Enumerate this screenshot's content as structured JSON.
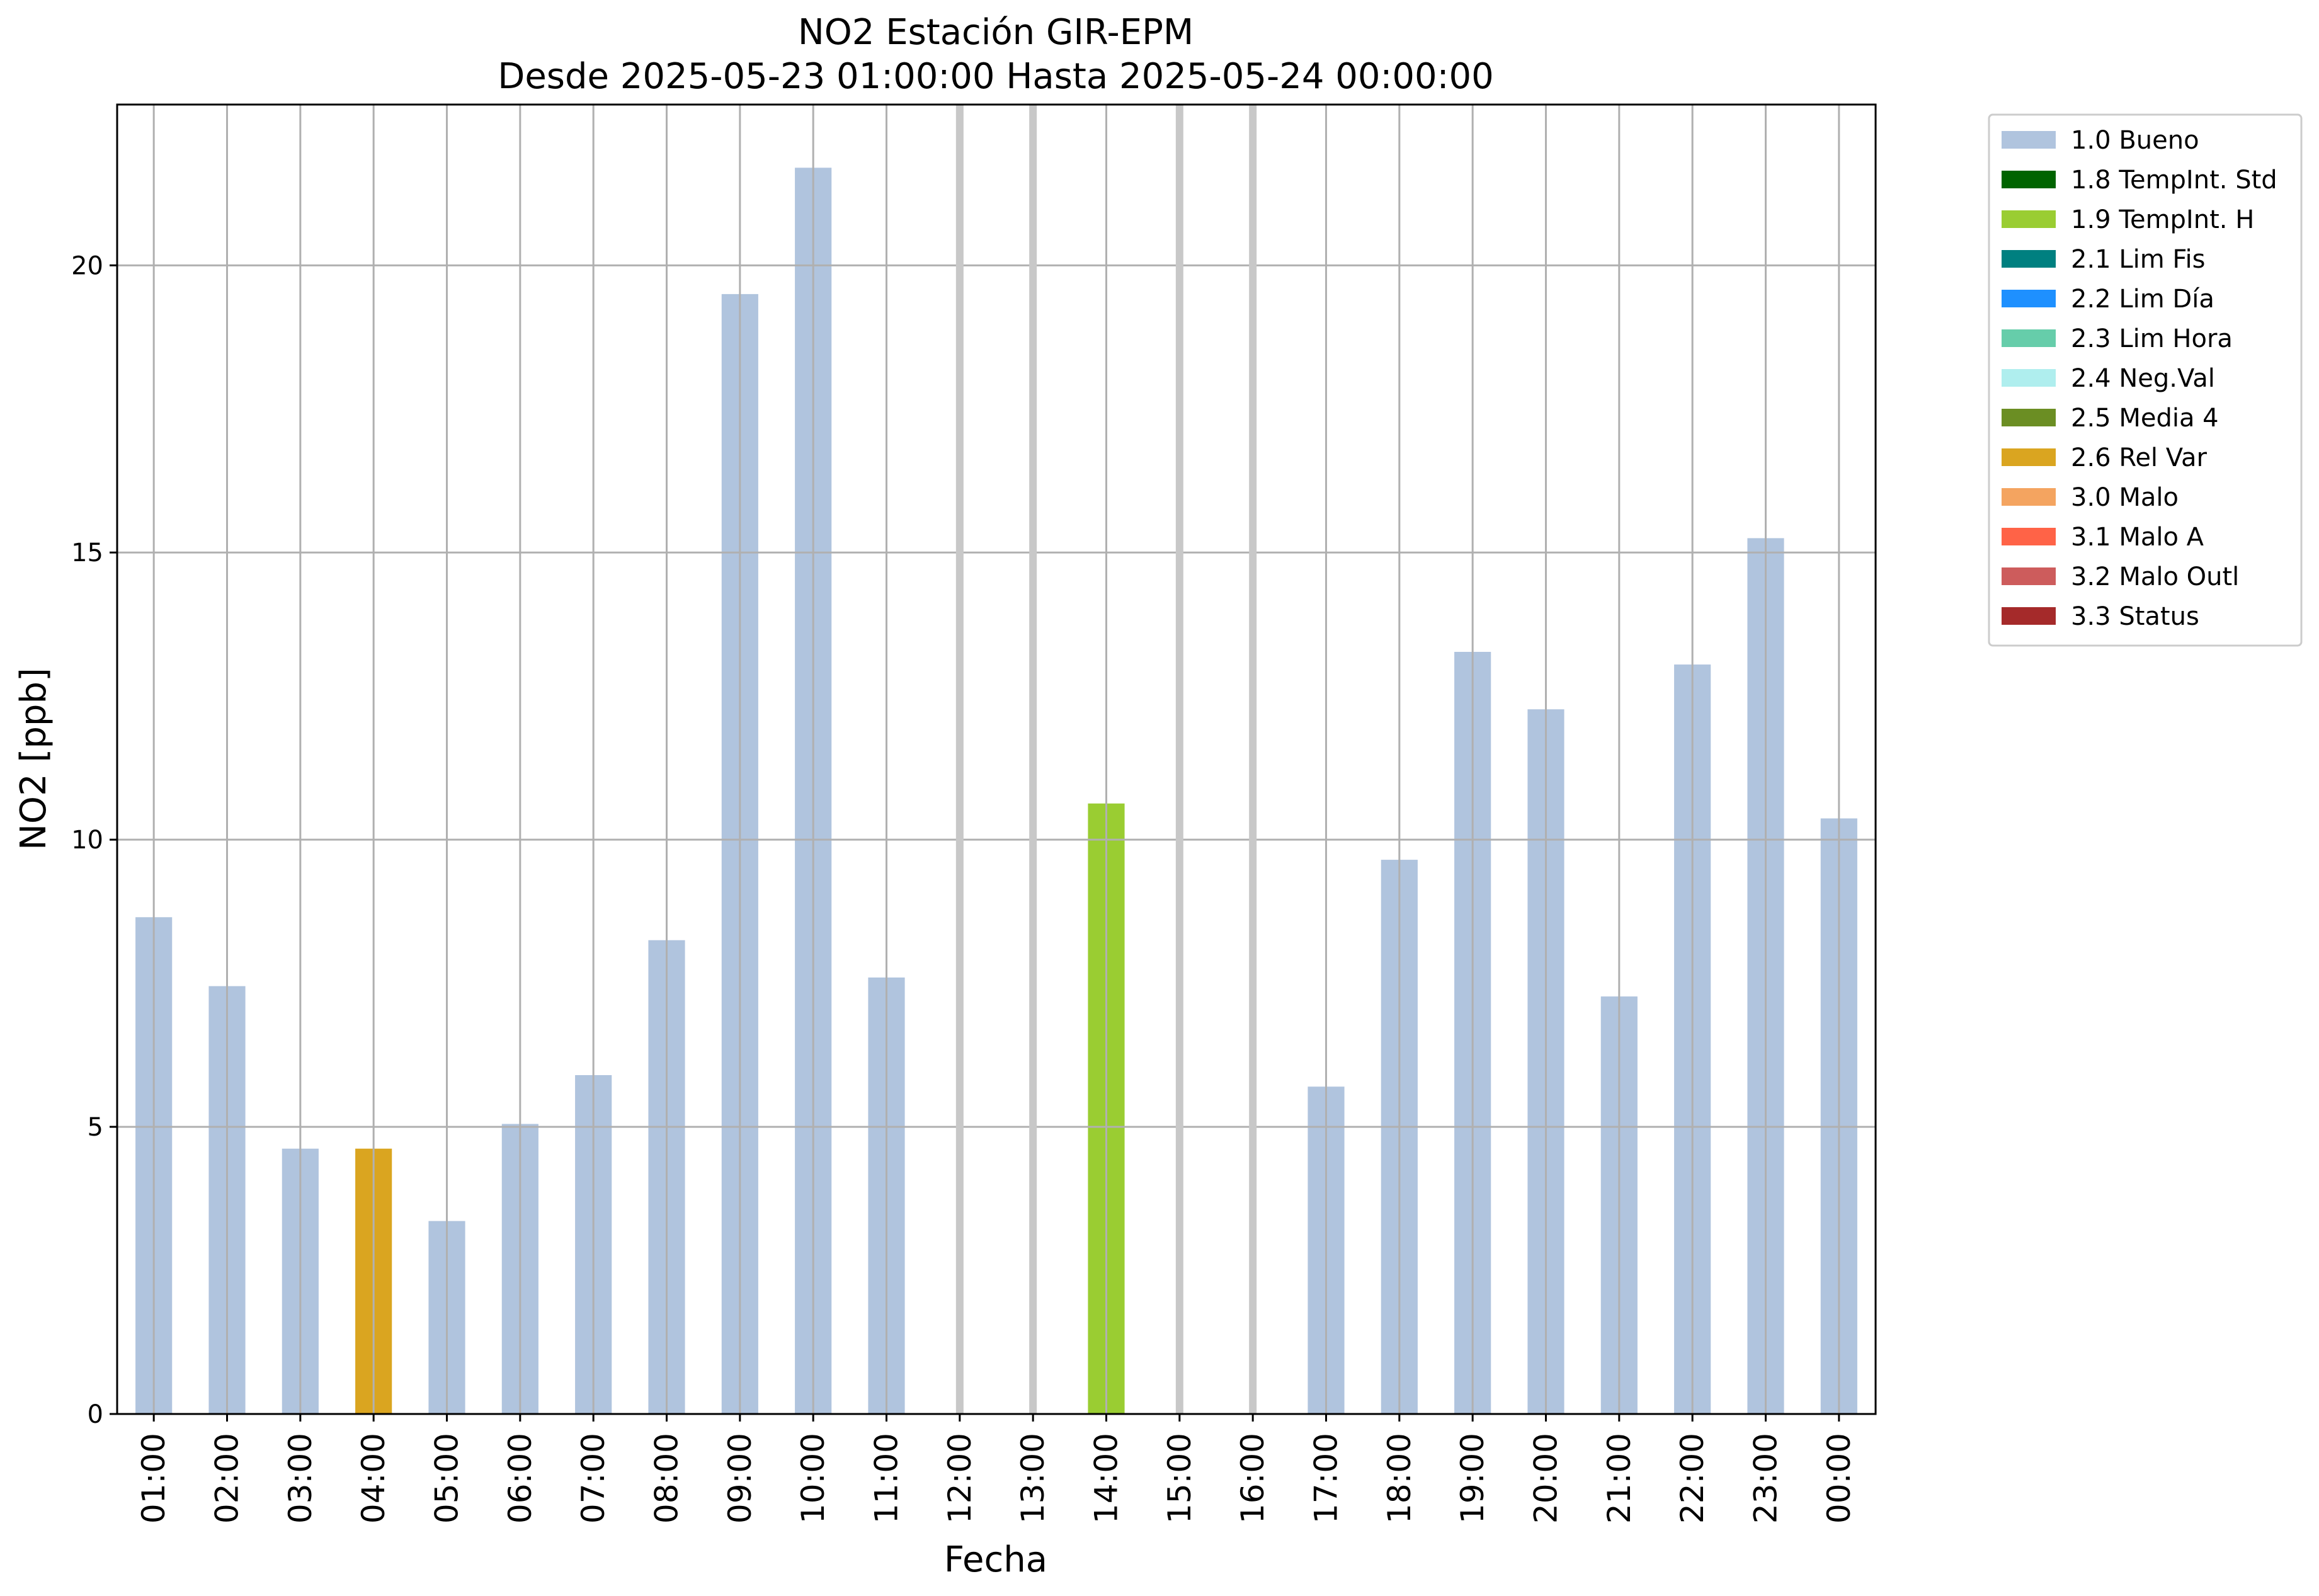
{
  "colors": {
    "bueno": "#b0c4de",
    "relvar": "#daa520",
    "tempint_h": "#9acd32",
    "grid": "#b0b0b0",
    "missing": "#c8c8c8"
  },
  "chart_data": {
    "type": "bar",
    "title": "NO2 Estación GIR-EPM",
    "subtitle": "Desde 2025-05-23 01:00:00 Hasta 2025-05-24 00:00:00",
    "xlabel": "Fecha",
    "ylabel": "NO2 [ppb]",
    "ylim": [
      0,
      22.8
    ],
    "yticks": [
      0,
      5,
      10,
      15,
      20
    ],
    "grid": true,
    "legend_position": "outside-top-right",
    "categories": [
      "01:00",
      "02:00",
      "03:00",
      "04:00",
      "05:00",
      "06:00",
      "07:00",
      "08:00",
      "09:00",
      "10:00",
      "11:00",
      "12:00",
      "13:00",
      "14:00",
      "15:00",
      "16:00",
      "17:00",
      "18:00",
      "19:00",
      "20:00",
      "21:00",
      "22:00",
      "23:00",
      "00:00"
    ],
    "values": [
      8.65,
      7.45,
      4.62,
      4.62,
      3.36,
      5.05,
      5.9,
      8.25,
      19.5,
      21.7,
      7.6,
      null,
      null,
      10.63,
      null,
      null,
      5.7,
      9.65,
      13.27,
      12.27,
      7.27,
      13.05,
      15.25,
      10.37
    ],
    "flags": [
      "1.0 Bueno",
      "1.0 Bueno",
      "1.0 Bueno",
      "2.6 Rel Var",
      "1.0 Bueno",
      "1.0 Bueno",
      "1.0 Bueno",
      "1.0 Bueno",
      "1.0 Bueno",
      "1.0 Bueno",
      "1.0 Bueno",
      null,
      null,
      "1.9 TempInt. H",
      null,
      null,
      "1.0 Bueno",
      "1.0 Bueno",
      "1.0 Bueno",
      "1.0 Bueno",
      "1.0 Bueno",
      "1.0 Bueno",
      "1.0 Bueno",
      "1.0 Bueno"
    ],
    "legend": [
      {
        "label": "1.0 Bueno",
        "color": "#b0c4de"
      },
      {
        "label": "1.8 TempInt. Std",
        "color": "#006400"
      },
      {
        "label": "1.9 TempInt. H",
        "color": "#9acd32"
      },
      {
        "label": "2.1 Lim Fis",
        "color": "#008080"
      },
      {
        "label": "2.2 Lim Día",
        "color": "#1e90ff"
      },
      {
        "label": "2.3 Lim Hora",
        "color": "#66cdaa"
      },
      {
        "label": "2.4 Neg.Val",
        "color": "#afeeee"
      },
      {
        "label": "2.5 Media 4",
        "color": "#6b8e23"
      },
      {
        "label": "2.6 Rel Var",
        "color": "#daa520"
      },
      {
        "label": "3.0 Malo",
        "color": "#f4a460"
      },
      {
        "label": "3.1 Malo A",
        "color": "#ff6347"
      },
      {
        "label": "3.2 Malo Outl",
        "color": "#cd5c5c"
      },
      {
        "label": "3.3 Status",
        "color": "#a52a2a"
      }
    ]
  }
}
